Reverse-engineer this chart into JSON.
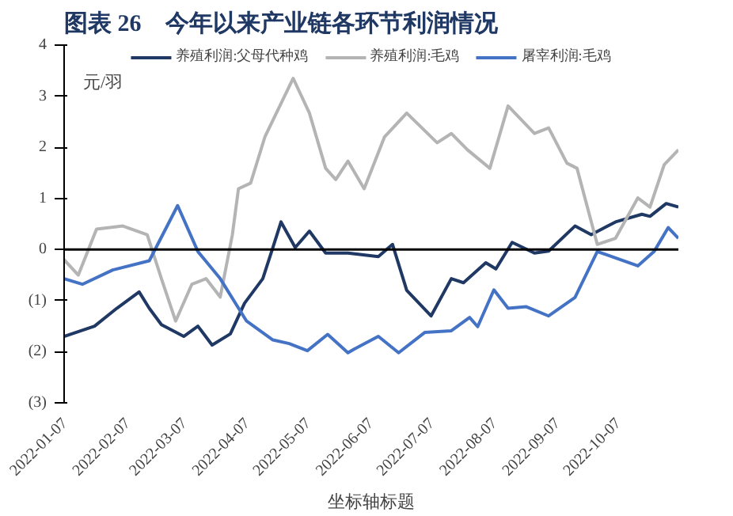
{
  "chart_data": {
    "type": "line",
    "title": "图表 26　今年以来产业链各环节利润情况",
    "xlabel": "坐标轴标题",
    "ylabel": "元/羽",
    "xlim": [
      "2022-01-07",
      "2022-11-06"
    ],
    "xticks": [
      "2022-01-07",
      "2022-02-07",
      "2022-03-07",
      "2022-04-07",
      "2022-05-07",
      "2022-06-07",
      "2022-07-07",
      "2022-08-07",
      "2022-09-07",
      "2022-10-07"
    ],
    "ylim": [
      -3,
      4
    ],
    "yticks": [
      {
        "value": -3,
        "label": "(3)"
      },
      {
        "value": -2,
        "label": "(2)"
      },
      {
        "value": -1,
        "label": "(1)"
      },
      0,
      1,
      2,
      3,
      4
    ],
    "ref_lines": [
      {
        "axis": "y",
        "value": 0,
        "color": "#000000"
      }
    ],
    "grid": false,
    "legend": "top",
    "marker": "none",
    "line_style": "solid",
    "series": [
      {
        "name": "养殖利润:父母代种鸡",
        "color": "#1f3864",
        "x": [
          "2022-01-07",
          "2022-01-22",
          "2022-02-02",
          "2022-02-13",
          "2022-02-18",
          "2022-02-24",
          "2022-03-07",
          "2022-03-14",
          "2022-03-21",
          "2022-03-30",
          "2022-04-06",
          "2022-04-15",
          "2022-04-20",
          "2022-04-24",
          "2022-05-01",
          "2022-05-08",
          "2022-05-16",
          "2022-05-27",
          "2022-06-11",
          "2022-06-18",
          "2022-06-25",
          "2022-07-07",
          "2022-07-17",
          "2022-07-23",
          "2022-08-03",
          "2022-08-08",
          "2022-08-16",
          "2022-08-27",
          "2022-09-03",
          "2022-09-16",
          "2022-09-24",
          "2022-10-06",
          "2022-10-19",
          "2022-10-23",
          "2022-10-31",
          "2022-11-06"
        ],
        "values": [
          -1.7,
          -1.5,
          -1.15,
          -0.83,
          -1.15,
          -1.47,
          -1.7,
          -1.5,
          -1.87,
          -1.65,
          -1.05,
          -0.57,
          0.04,
          0.54,
          0.04,
          0.36,
          -0.07,
          -0.07,
          -0.14,
          0.1,
          -0.8,
          -1.3,
          -0.57,
          -0.65,
          -0.26,
          -0.38,
          0.14,
          -0.07,
          -0.03,
          0.46,
          0.29,
          0.54,
          0.69,
          0.65,
          0.9,
          0.83
        ]
      },
      {
        "name": "养殖利润:毛鸡",
        "color": "#b4b4b4",
        "x": [
          "2022-01-07",
          "2022-01-14",
          "2022-01-23",
          "2022-02-05",
          "2022-02-17",
          "2022-02-24",
          "2022-03-03",
          "2022-03-11",
          "2022-03-18",
          "2022-03-25",
          "2022-03-31",
          "2022-04-03",
          "2022-04-09",
          "2022-04-16",
          "2022-04-30",
          "2022-05-08",
          "2022-05-16",
          "2022-05-21",
          "2022-05-27",
          "2022-06-04",
          "2022-06-14",
          "2022-06-25",
          "2022-07-10",
          "2022-07-17",
          "2022-07-25",
          "2022-08-05",
          "2022-08-14",
          "2022-08-27",
          "2022-09-03",
          "2022-09-12",
          "2022-09-17",
          "2022-09-27",
          "2022-10-06",
          "2022-10-17",
          "2022-10-23",
          "2022-10-30",
          "2022-11-06"
        ],
        "values": [
          -0.2,
          -0.5,
          0.4,
          0.46,
          0.29,
          -0.57,
          -1.4,
          -0.68,
          -0.57,
          -0.93,
          0.29,
          1.19,
          1.3,
          2.2,
          3.35,
          2.67,
          1.59,
          1.37,
          1.73,
          1.19,
          2.2,
          2.67,
          2.09,
          2.27,
          1.95,
          1.59,
          2.81,
          2.27,
          2.38,
          1.69,
          1.59,
          0.1,
          0.22,
          1.01,
          0.83,
          1.66,
          1.95
        ]
      },
      {
        "name": "屠宰利润:毛鸡",
        "color": "#4472c4",
        "x": [
          "2022-01-07",
          "2022-01-16",
          "2022-01-31",
          "2022-02-18",
          "2022-03-04",
          "2022-03-14",
          "2022-03-25",
          "2022-04-07",
          "2022-04-20",
          "2022-04-28",
          "2022-05-07",
          "2022-05-17",
          "2022-05-27",
          "2022-05-30",
          "2022-06-11",
          "2022-06-21",
          "2022-07-04",
          "2022-07-17",
          "2022-07-26",
          "2022-07-30",
          "2022-08-07",
          "2022-08-14",
          "2022-08-23",
          "2022-09-03",
          "2022-09-16",
          "2022-09-27",
          "2022-10-17",
          "2022-10-25",
          "2022-11-01",
          "2022-11-06"
        ],
        "values": [
          -0.57,
          -0.68,
          -0.4,
          -0.22,
          0.86,
          -0.04,
          -0.57,
          -1.4,
          -1.77,
          -1.84,
          -1.98,
          -1.66,
          -2.02,
          -1.95,
          -1.7,
          -2.02,
          -1.62,
          -1.59,
          -1.33,
          -1.51,
          -0.79,
          -1.15,
          -1.12,
          -1.3,
          -0.94,
          -0.04,
          -0.32,
          -0.04,
          0.43,
          0.22
        ]
      }
    ]
  }
}
